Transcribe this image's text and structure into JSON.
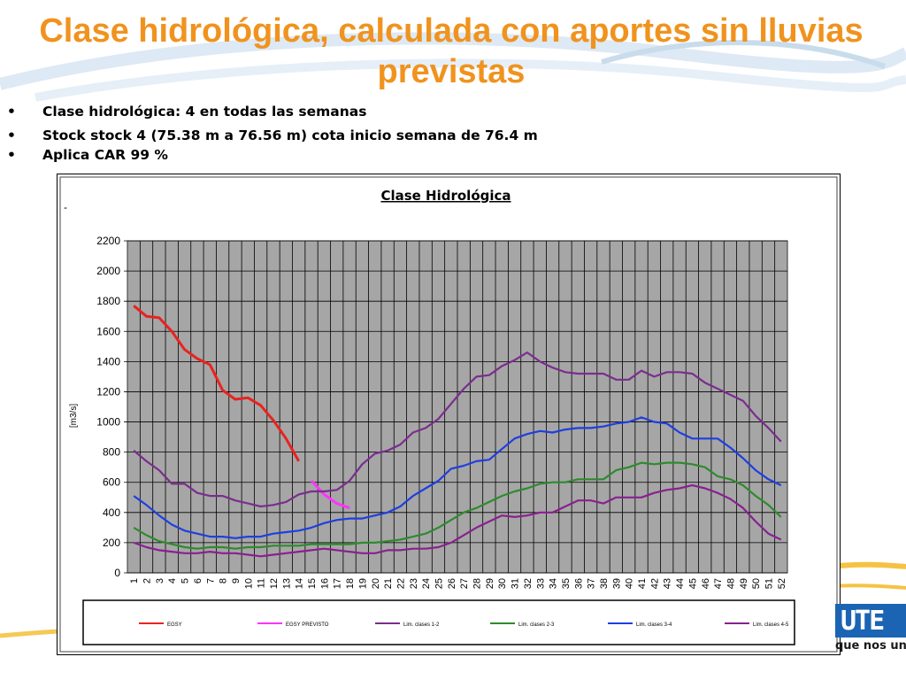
{
  "slide": {
    "title": "Clase hidrológica, calculada con aportes sin lluvias previstas",
    "bullets": [
      "Clase hidrológica:  4 en todas las semanas",
      "Stock stock 4 (75.38 m a 76.56 m) cota inicio semana de 76.4 m",
      "Aplica CAR 99 %"
    ],
    "bullet_marker": "•",
    "logo_text": "que nos une",
    "logo_glyph": "UTE"
  },
  "colors": {
    "title": "#f0931e",
    "plot_bg": "#a6a6a6",
    "logo": "#1b64b4"
  },
  "chart_data": {
    "type": "line",
    "title": "Clase Hidrológica",
    "ylabel": "[m3/s]",
    "xlabel": "",
    "ylim": [
      0,
      2200
    ],
    "yticks": [
      0,
      200,
      400,
      600,
      800,
      1000,
      1200,
      1400,
      1600,
      1800,
      2000,
      2200
    ],
    "x": [
      1,
      2,
      3,
      4,
      5,
      6,
      7,
      8,
      9,
      10,
      11,
      12,
      13,
      14,
      15,
      16,
      17,
      18,
      19,
      20,
      21,
      22,
      23,
      24,
      25,
      26,
      27,
      28,
      29,
      30,
      31,
      32,
      33,
      34,
      35,
      36,
      37,
      38,
      39,
      40,
      41,
      42,
      43,
      44,
      45,
      46,
      47,
      48,
      49,
      50,
      51,
      52
    ],
    "grid": true,
    "legend": "bottom",
    "series": [
      {
        "name": "EGSY",
        "color": "#e8231f",
        "x": [
          1,
          2,
          3,
          4,
          5,
          6,
          7,
          8,
          9,
          10,
          11,
          12,
          13,
          14
        ],
        "values": [
          1770,
          1700,
          1690,
          1600,
          1480,
          1420,
          1380,
          1210,
          1150,
          1160,
          1110,
          1010,
          890,
          740
        ]
      },
      {
        "name": "EGSY PREVISTO",
        "color": "#ff33ff",
        "x": [
          15,
          16,
          17,
          18
        ],
        "values": [
          610,
          520,
          460,
          430
        ]
      },
      {
        "name": "Lim. clases 1-2",
        "color": "#7b2d8e",
        "x": [
          1,
          2,
          3,
          4,
          5,
          6,
          7,
          8,
          9,
          10,
          11,
          12,
          13,
          14,
          15,
          16,
          17,
          18,
          19,
          20,
          21,
          22,
          23,
          24,
          25,
          26,
          27,
          28,
          29,
          30,
          31,
          32,
          33,
          34,
          35,
          36,
          37,
          38,
          39,
          40,
          41,
          42,
          43,
          44,
          45,
          46,
          47,
          48,
          49,
          50,
          51,
          52
        ],
        "values": [
          810,
          740,
          680,
          590,
          590,
          530,
          510,
          510,
          480,
          460,
          440,
          450,
          470,
          520,
          540,
          540,
          550,
          610,
          720,
          790,
          810,
          850,
          930,
          960,
          1020,
          1120,
          1220,
          1300,
          1310,
          1370,
          1410,
          1460,
          1400,
          1360,
          1330,
          1320,
          1320,
          1320,
          1280,
          1280,
          1340,
          1300,
          1330,
          1330,
          1320,
          1260,
          1220,
          1180,
          1140,
          1040,
          960,
          870
        ]
      },
      {
        "name": "Lim. clases 2-3",
        "color": "#2e8b2e",
        "x": [
          1,
          2,
          3,
          4,
          5,
          6,
          7,
          8,
          9,
          10,
          11,
          12,
          13,
          14,
          15,
          16,
          17,
          18,
          19,
          20,
          21,
          22,
          23,
          24,
          25,
          26,
          27,
          28,
          29,
          30,
          31,
          32,
          33,
          34,
          35,
          36,
          37,
          38,
          39,
          40,
          41,
          42,
          43,
          44,
          45,
          46,
          47,
          48,
          49,
          50,
          51,
          52
        ],
        "values": [
          300,
          250,
          210,
          190,
          170,
          160,
          170,
          170,
          160,
          170,
          170,
          180,
          180,
          180,
          190,
          190,
          190,
          190,
          200,
          200,
          210,
          220,
          240,
          260,
          300,
          350,
          400,
          430,
          470,
          510,
          540,
          560,
          590,
          600,
          600,
          620,
          620,
          620,
          680,
          700,
          730,
          720,
          730,
          730,
          720,
          700,
          640,
          620,
          580,
          510,
          450,
          370
        ]
      },
      {
        "name": "Lim. clases 3-4",
        "color": "#1f3fe0",
        "x": [
          1,
          2,
          3,
          4,
          5,
          6,
          7,
          8,
          9,
          10,
          11,
          12,
          13,
          14,
          15,
          16,
          17,
          18,
          19,
          20,
          21,
          22,
          23,
          24,
          25,
          26,
          27,
          28,
          29,
          30,
          31,
          32,
          33,
          34,
          35,
          36,
          37,
          38,
          39,
          40,
          41,
          42,
          43,
          44,
          45,
          46,
          47,
          48,
          49,
          50,
          51,
          52
        ],
        "values": [
          510,
          450,
          380,
          320,
          280,
          260,
          240,
          240,
          230,
          240,
          240,
          260,
          270,
          280,
          300,
          330,
          350,
          360,
          360,
          380,
          400,
          440,
          510,
          560,
          610,
          690,
          710,
          740,
          750,
          820,
          890,
          920,
          940,
          930,
          950,
          960,
          960,
          970,
          990,
          1000,
          1030,
          1000,
          990,
          930,
          890,
          890,
          890,
          830,
          760,
          680,
          620,
          580
        ]
      },
      {
        "name": "Lim. clases 4-5",
        "color": "#8a2090",
        "x": [
          1,
          2,
          3,
          4,
          5,
          6,
          7,
          8,
          9,
          10,
          11,
          12,
          13,
          14,
          15,
          16,
          17,
          18,
          19,
          20,
          21,
          22,
          23,
          24,
          25,
          26,
          27,
          28,
          29,
          30,
          31,
          32,
          33,
          34,
          35,
          36,
          37,
          38,
          39,
          40,
          41,
          42,
          43,
          44,
          45,
          46,
          47,
          48,
          49,
          50,
          51,
          52
        ],
        "values": [
          200,
          170,
          150,
          140,
          130,
          130,
          140,
          130,
          130,
          120,
          110,
          120,
          130,
          140,
          150,
          160,
          150,
          140,
          130,
          130,
          150,
          150,
          160,
          160,
          170,
          200,
          250,
          300,
          340,
          380,
          370,
          380,
          400,
          400,
          440,
          480,
          480,
          460,
          500,
          500,
          500,
          530,
          550,
          560,
          580,
          560,
          530,
          490,
          430,
          340,
          260,
          220
        ]
      }
    ]
  }
}
